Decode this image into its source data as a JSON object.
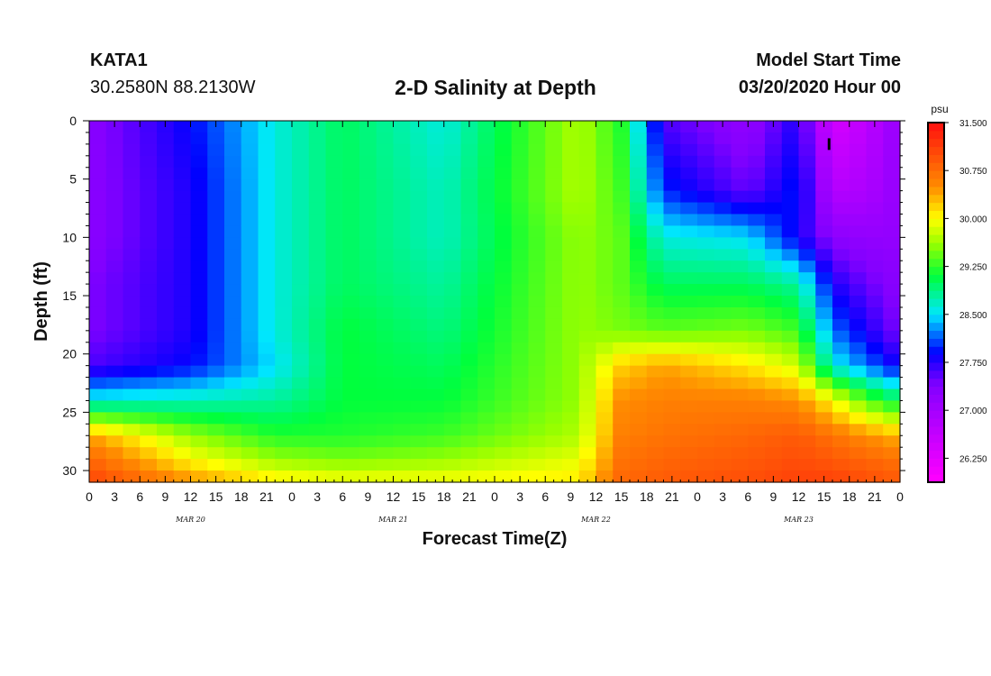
{
  "header": {
    "station": "KATA1",
    "coordinates": "30.2580N 88.2130W",
    "title": "2-D Salinity at Depth",
    "start_label": "Model Start Time",
    "start_value": "03/20/2020 Hour 00"
  },
  "chart_data": {
    "type": "heatmap",
    "title": "2-D Salinity at Depth",
    "xlabel": "Forecast Time(Z)",
    "ylabel": "Depth (ft)",
    "units": "psu",
    "x_tick_labels": [
      "0",
      "3",
      "6",
      "9",
      "12",
      "15",
      "18",
      "21",
      "0",
      "3",
      "6",
      "9",
      "12",
      "15",
      "18",
      "21",
      "0",
      "3",
      "6",
      "9",
      "12",
      "15",
      "18",
      "21",
      "0",
      "3",
      "6",
      "9",
      "12",
      "15",
      "18",
      "21",
      "0"
    ],
    "day_labels": [
      {
        "label": "MAR 20",
        "hour": 12
      },
      {
        "label": "MAR 21",
        "hour": 36
      },
      {
        "label": "MAR 22",
        "hour": 60
      },
      {
        "label": "MAR 23",
        "hour": 84
      }
    ],
    "x_range_hours": [
      0,
      96
    ],
    "y_range_ft": [
      0,
      31
    ],
    "y_ticks": [
      0,
      5,
      10,
      15,
      20,
      25,
      30
    ],
    "colorbar": {
      "range": [
        25.875,
        31.5
      ],
      "tick_values": [
        26.25,
        27.0,
        27.75,
        28.5,
        29.25,
        30.0,
        30.75,
        31.5
      ],
      "tick_labels": [
        "26.250",
        "27.000",
        "27.750",
        "28.500",
        "29.250",
        "30.000",
        "30.750",
        "31.500"
      ]
    },
    "grid": {
      "hours": [
        0,
        12,
        22,
        30,
        42,
        58,
        63,
        68,
        78,
        84,
        88,
        92,
        96
      ],
      "depths": [
        0,
        6,
        10,
        14,
        18,
        21,
        24,
        27,
        29,
        31
      ],
      "salinity": [
        [
          27.3,
          27.9,
          28.6,
          29.0,
          28.6,
          29.7,
          29.2,
          27.6,
          27.2,
          27.8,
          26.4,
          26.7,
          27.2
        ],
        [
          27.3,
          27.8,
          28.6,
          29.0,
          28.7,
          29.7,
          29.3,
          28.0,
          27.5,
          28.0,
          26.8,
          26.9,
          27.2
        ],
        [
          27.3,
          27.8,
          28.6,
          29.0,
          28.7,
          29.6,
          29.4,
          28.6,
          28.5,
          27.8,
          27.3,
          27.2,
          27.2
        ],
        [
          27.4,
          27.8,
          28.6,
          29.0,
          28.8,
          29.6,
          29.4,
          29.0,
          29.0,
          28.8,
          27.8,
          27.5,
          27.3
        ],
        [
          27.4,
          27.8,
          28.6,
          29.1,
          28.9,
          29.6,
          29.5,
          29.4,
          29.5,
          29.3,
          28.2,
          27.8,
          27.4
        ],
        [
          27.6,
          27.9,
          28.5,
          29.1,
          29.0,
          29.6,
          30.2,
          30.4,
          30.1,
          29.8,
          28.6,
          28.2,
          27.8
        ],
        [
          28.6,
          28.7,
          28.8,
          29.1,
          29.1,
          29.6,
          30.5,
          30.6,
          30.6,
          30.5,
          30.0,
          29.4,
          29.0
        ],
        [
          30.4,
          29.6,
          29.2,
          29.2,
          29.3,
          29.7,
          30.6,
          30.7,
          30.8,
          30.9,
          30.7,
          30.5,
          30.3
        ],
        [
          30.8,
          30.0,
          29.6,
          29.5,
          29.6,
          29.9,
          30.7,
          30.8,
          30.9,
          31.0,
          30.9,
          30.8,
          30.7
        ],
        [
          31.1,
          30.5,
          30.1,
          30.0,
          30.0,
          30.1,
          30.8,
          30.9,
          31.0,
          31.1,
          31.1,
          31.0,
          30.9
        ]
      ]
    }
  }
}
